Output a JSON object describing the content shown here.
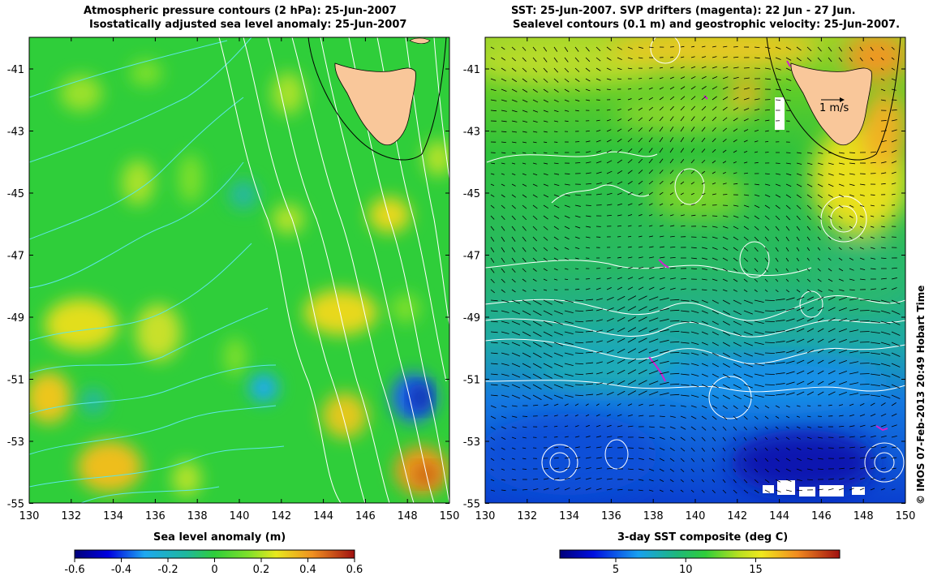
{
  "left_panel": {
    "title_line1": "Atmospheric pressure contours (2 hPa): 25-Jun-2007",
    "title_line2": "Isostatically adjusted sea level anomaly: 25-Jun-2007",
    "lat_ticks": [
      "-41",
      "-43",
      "-45",
      "-47",
      "-49",
      "-51",
      "-53",
      "-55"
    ],
    "lon_ticks": [
      "130",
      "132",
      "134",
      "136",
      "138",
      "140",
      "142",
      "144",
      "146",
      "148",
      "150"
    ],
    "colorbar_title": "Sea level anomaly (m)",
    "colorbar_ticks": [
      "-0.6",
      "-0.4",
      "-0.2",
      "0",
      "0.2",
      "0.4",
      "0.6"
    ]
  },
  "right_panel": {
    "title_line1": "SST: 25-Jun-2007. SVP drifters (magenta): 22 Jun - 27 Jun.",
    "title_line2": "Sealevel contours (0.1 m) and geostrophic velocity: 25-Jun-2007.",
    "velocity_scale_label": "1 m/s",
    "lat_ticks": [
      "-41",
      "-43",
      "-45",
      "-47",
      "-49",
      "-51",
      "-53",
      "-55"
    ],
    "lon_ticks": [
      "130",
      "132",
      "134",
      "136",
      "138",
      "140",
      "142",
      "144",
      "146",
      "148",
      "150"
    ],
    "colorbar_title": "3-day SST composite (deg C)",
    "colorbar_ticks": [
      "5",
      "10",
      "15"
    ]
  },
  "credit": "© IMOS 07-Feb-2013 20:49 Hobart Time",
  "colors": {
    "land": "#f9c79a",
    "ocean_base": "#2fce3a",
    "pressure_contour": "#5de6e6",
    "sealevel_contour": "#ffffff",
    "drifter": "#d020d0"
  }
}
